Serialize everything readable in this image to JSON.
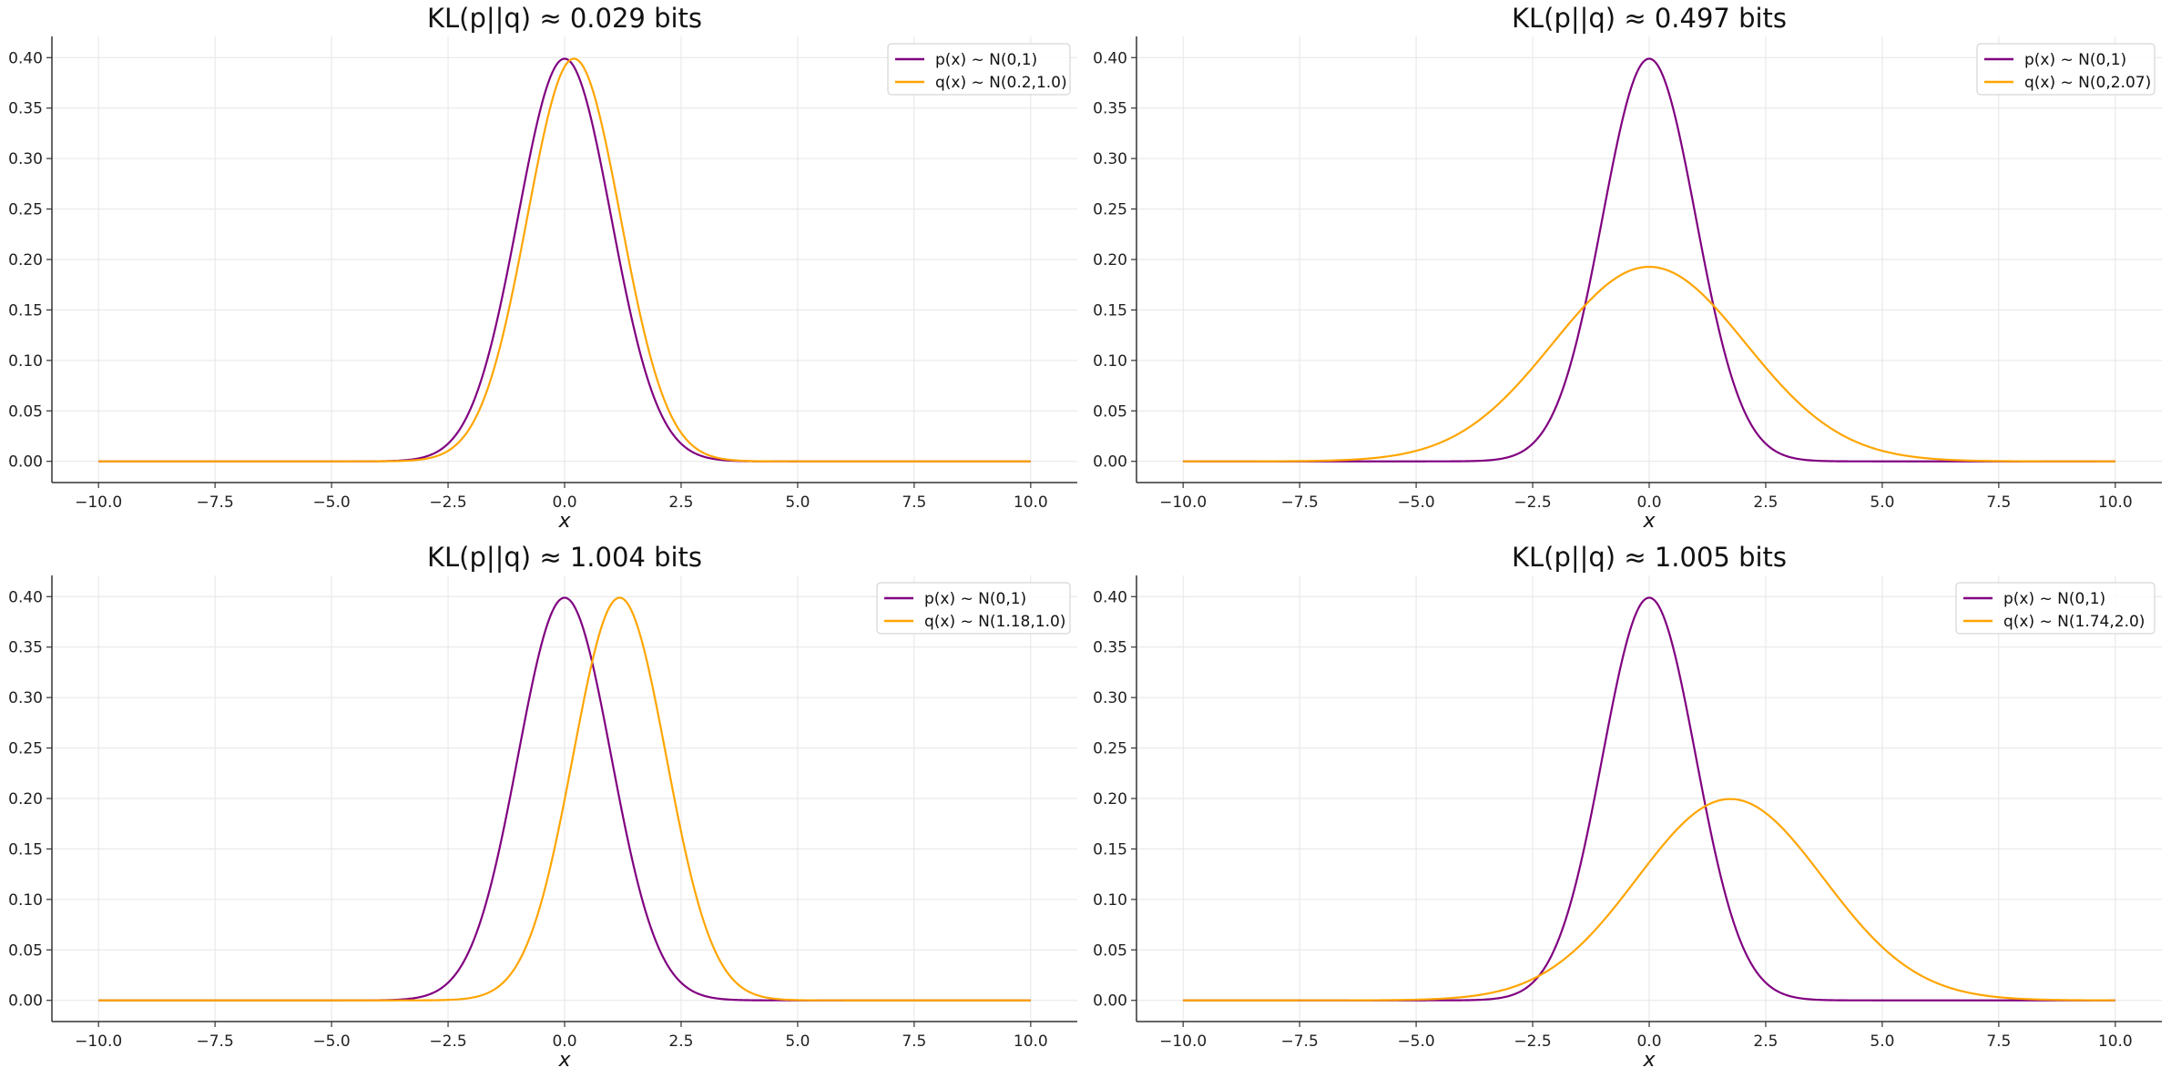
{
  "chart_data": [
    {
      "type": "line",
      "title": "KL(p||q) ≈ 0.029 bits",
      "xlabel": "x",
      "ylabel": "",
      "xlim": [
        -10.0,
        10.0
      ],
      "ylim": [
        0.0,
        0.4
      ],
      "x_ticks": [
        "−10.0",
        "−7.5",
        "−5.0",
        "−2.5",
        "0.0",
        "2.5",
        "5.0",
        "7.5",
        "10.0"
      ],
      "y_ticks": [
        "0.00",
        "0.05",
        "0.10",
        "0.15",
        "0.20",
        "0.25",
        "0.30",
        "0.35",
        "0.40"
      ],
      "grid": true,
      "legend_position": "top-right",
      "series": [
        {
          "name": "p(x) ~ N(0,1)",
          "color": "#800080",
          "mean": 0,
          "std": 1.0
        },
        {
          "name": "q(x) ~ N(0.2,1.0)",
          "color": "#FFA500",
          "mean": 0.2,
          "std": 1.0
        }
      ]
    },
    {
      "type": "line",
      "title": "KL(p||q) ≈ 0.497 bits",
      "xlabel": "x",
      "ylabel": "",
      "xlim": [
        -10.0,
        10.0
      ],
      "ylim": [
        0.0,
        0.4
      ],
      "x_ticks": [
        "−10.0",
        "−7.5",
        "−5.0",
        "−2.5",
        "0.0",
        "2.5",
        "5.0",
        "7.5",
        "10.0"
      ],
      "y_ticks": [
        "0.00",
        "0.05",
        "0.10",
        "0.15",
        "0.20",
        "0.25",
        "0.30",
        "0.35",
        "0.40"
      ],
      "grid": true,
      "legend_position": "top-right",
      "series": [
        {
          "name": "p(x) ~ N(0,1)",
          "color": "#800080",
          "mean": 0,
          "std": 1.0
        },
        {
          "name": "q(x) ~ N(0,2.07)",
          "color": "#FFA500",
          "mean": 0,
          "std": 2.07
        }
      ]
    },
    {
      "type": "line",
      "title": "KL(p||q) ≈ 1.004 bits",
      "xlabel": "x",
      "ylabel": "",
      "xlim": [
        -10.0,
        10.0
      ],
      "ylim": [
        0.0,
        0.4
      ],
      "x_ticks": [
        "−10.0",
        "−7.5",
        "−5.0",
        "−2.5",
        "0.0",
        "2.5",
        "5.0",
        "7.5",
        "10.0"
      ],
      "y_ticks": [
        "0.00",
        "0.05",
        "0.10",
        "0.15",
        "0.20",
        "0.25",
        "0.30",
        "0.35",
        "0.40"
      ],
      "grid": true,
      "legend_position": "top-right",
      "series": [
        {
          "name": "p(x) ~ N(0,1)",
          "color": "#800080",
          "mean": 0,
          "std": 1.0
        },
        {
          "name": "q(x) ~ N(1.18,1.0)",
          "color": "#FFA500",
          "mean": 1.18,
          "std": 1.0
        }
      ]
    },
    {
      "type": "line",
      "title": "KL(p||q) ≈ 1.005 bits",
      "xlabel": "x",
      "ylabel": "",
      "xlim": [
        -10.0,
        10.0
      ],
      "ylim": [
        0.0,
        0.4
      ],
      "x_ticks": [
        "−10.0",
        "−7.5",
        "−5.0",
        "−2.5",
        "0.0",
        "2.5",
        "5.0",
        "7.5",
        "10.0"
      ],
      "y_ticks": [
        "0.00",
        "0.05",
        "0.10",
        "0.15",
        "0.20",
        "0.25",
        "0.30",
        "0.35",
        "0.40"
      ],
      "grid": true,
      "legend_position": "top-right",
      "series": [
        {
          "name": "p(x) ~ N(0,1)",
          "color": "#800080",
          "mean": 0,
          "std": 1.0
        },
        {
          "name": "q(x) ~ N(1.74,2.0)",
          "color": "#FFA500",
          "mean": 1.74,
          "std": 2.0
        }
      ]
    }
  ]
}
